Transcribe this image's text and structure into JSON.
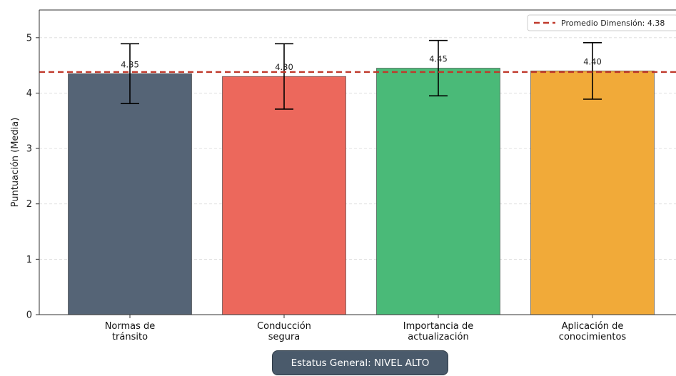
{
  "chart_data": {
    "type": "bar",
    "categories": [
      [
        "Normas de",
        "tránsito"
      ],
      [
        "Conducción",
        "segura"
      ],
      [
        "Importancia de",
        "actualización"
      ],
      [
        "Aplicación de",
        "conocimientos"
      ]
    ],
    "values": [
      4.35,
      4.3,
      4.45,
      4.4
    ],
    "value_labels": [
      "4.35",
      "4.30",
      "4.45",
      "4.40"
    ],
    "error_low": [
      3.81,
      3.71,
      3.95,
      3.89
    ],
    "error_high": [
      4.89,
      4.89,
      4.95,
      4.91
    ],
    "colors": [
      "#556476",
      "#ec685c",
      "#4aba78",
      "#f1aa39"
    ],
    "ylabel": "Puntuación (Media)",
    "xlabel": "",
    "title": "",
    "ylim": [
      0,
      5.5
    ],
    "yticks": [
      0,
      1,
      2,
      3,
      4,
      5
    ],
    "grid": "horizontal dashed",
    "reference_line": {
      "value": 4.38,
      "label": "Promedio Dimensión: 4.38",
      "color": "#c0392b",
      "style": "dashed"
    },
    "legend_position": "top-right"
  },
  "status": {
    "label": "Estatus General: NIVEL ALTO"
  }
}
